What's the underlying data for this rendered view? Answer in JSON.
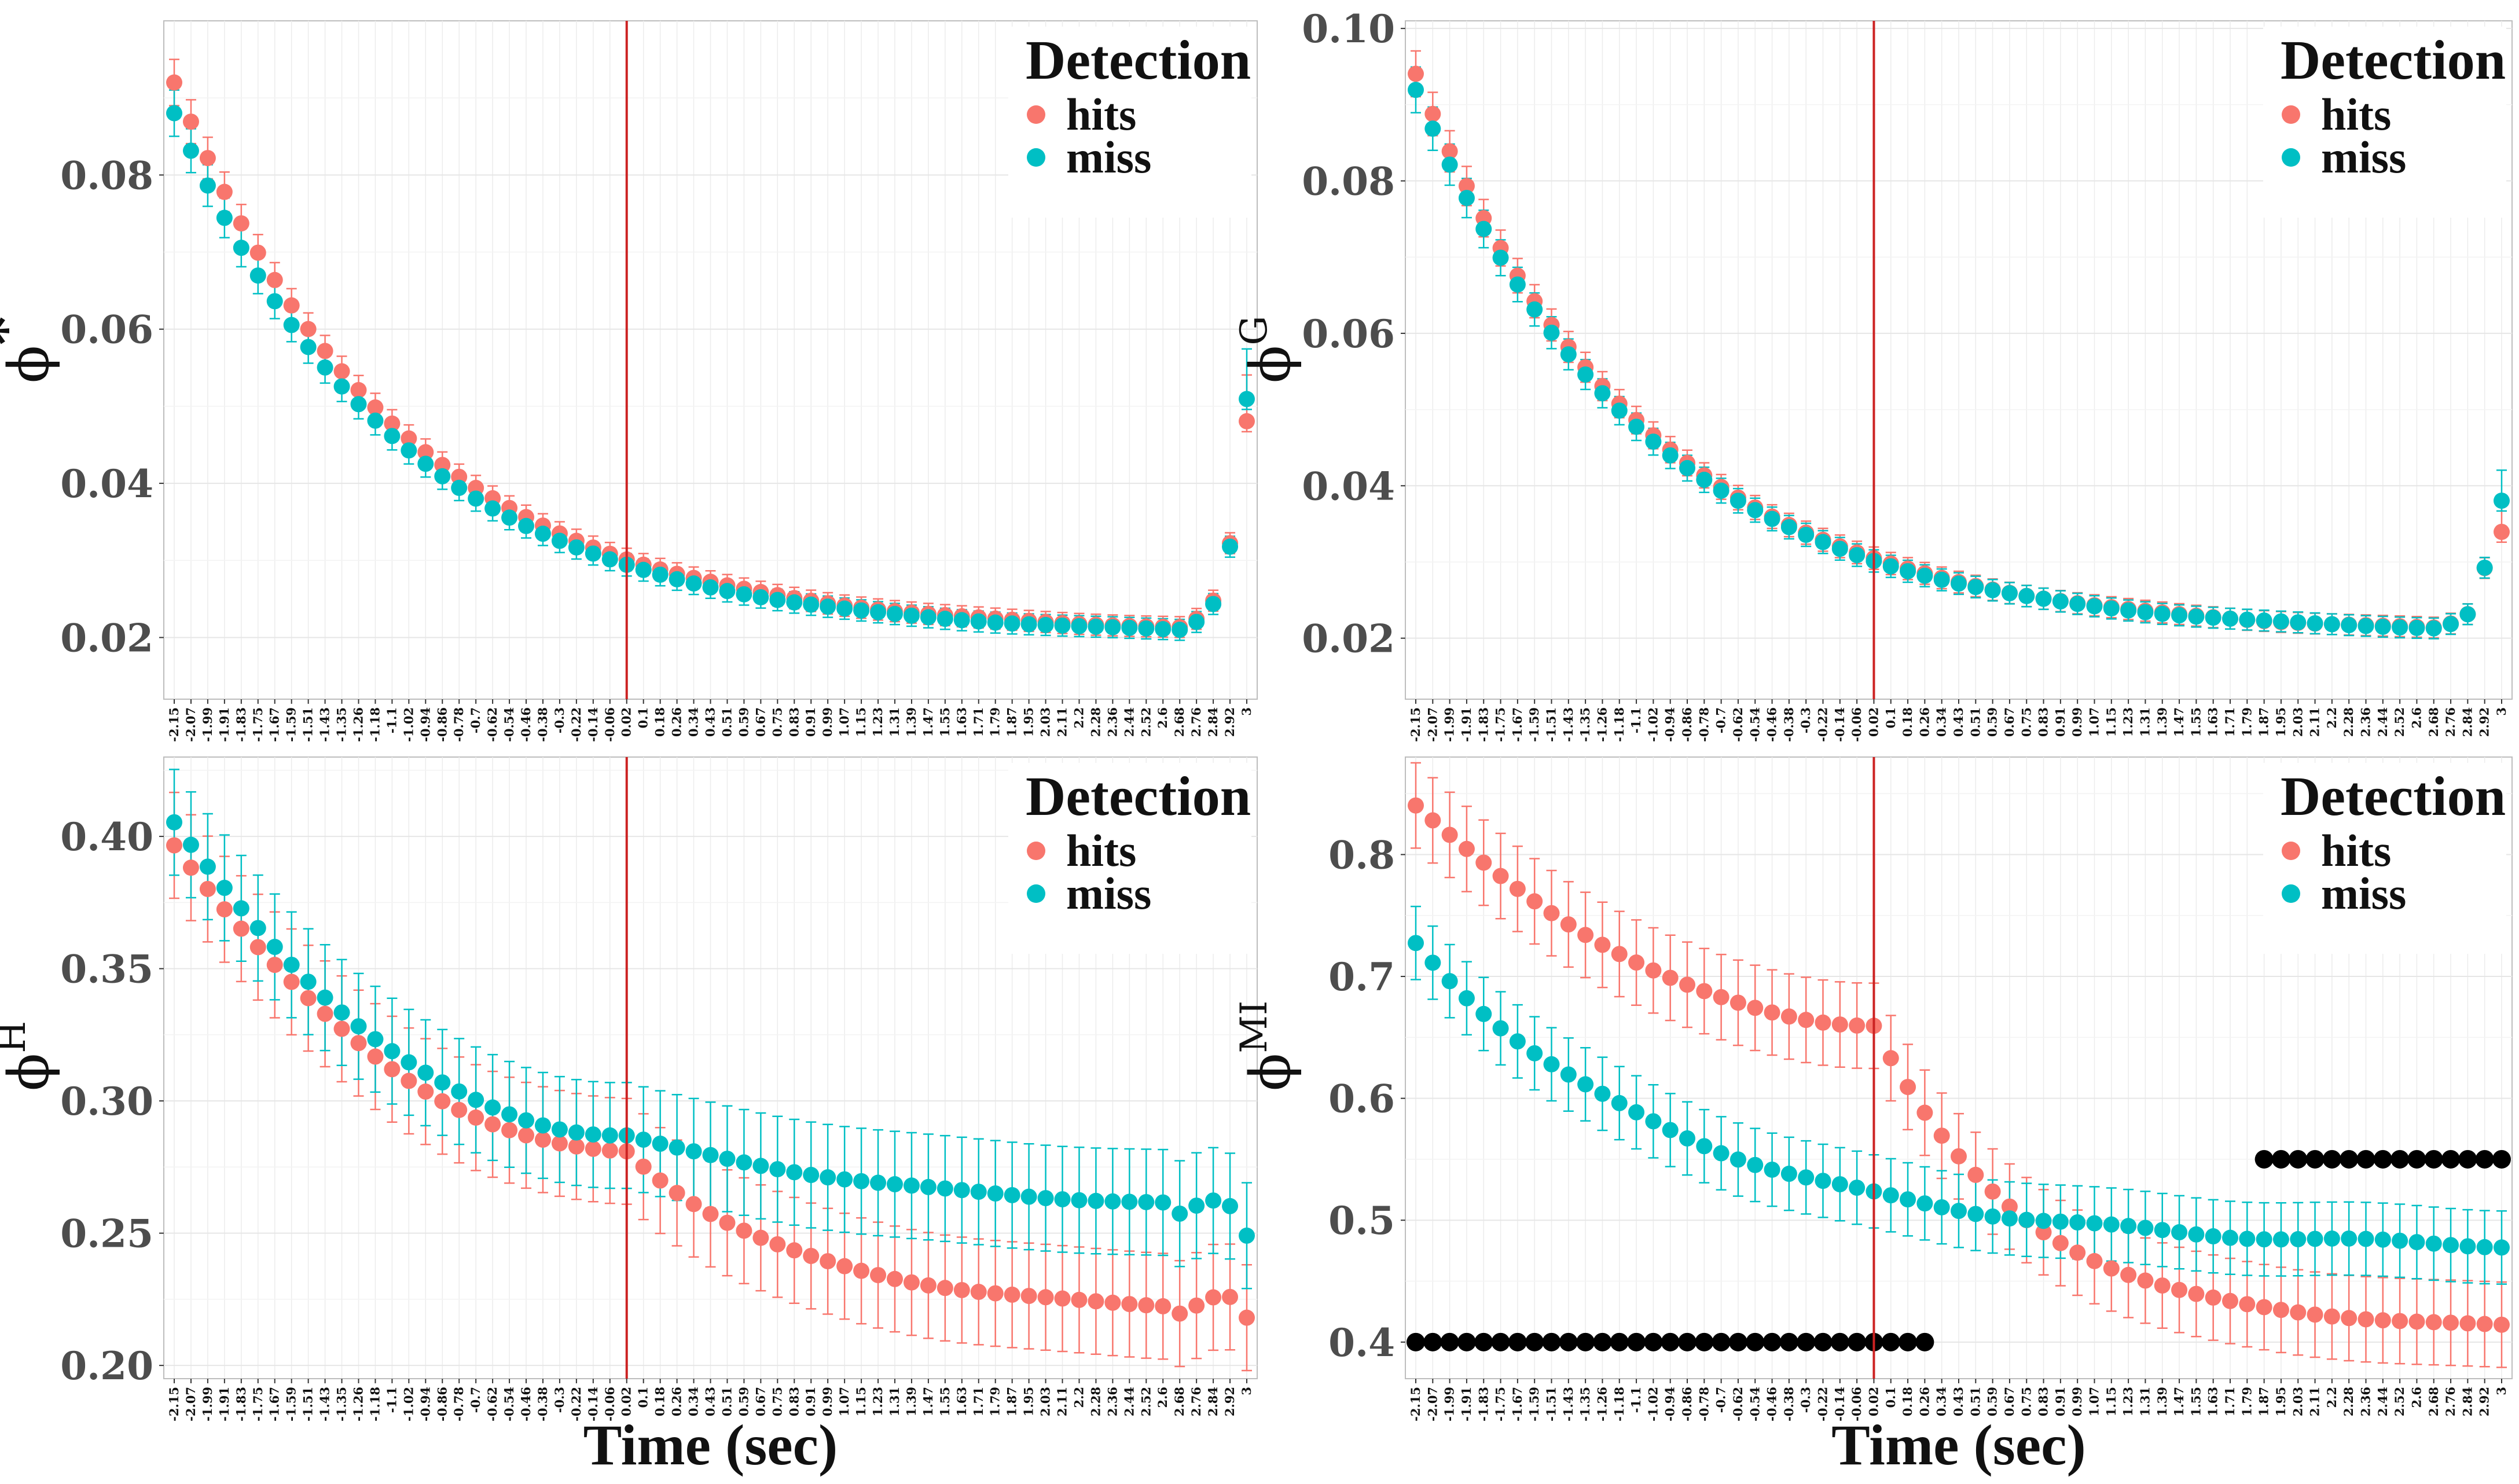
{
  "figure": {
    "xlabel": "Time (sec)",
    "legend_title": "Detection",
    "colors": {
      "hits": "#F8766D",
      "miss": "#00BFC4",
      "vline": "#CC2222",
      "marker": "#000000"
    }
  },
  "chart_data": [
    {
      "type": "scatter",
      "panel": "top-left",
      "ylabel": "ϕ",
      "ylabel_sup": "*",
      "xlabel": "",
      "legend": {
        "title": "Detection",
        "entries": [
          "hits",
          "miss"
        ],
        "placement": "top-right"
      },
      "ylim": [
        0.012,
        0.1
      ],
      "yticks": [
        0.02,
        0.04,
        0.06,
        0.08
      ],
      "ytick_labels": [
        "0.02",
        "0.04",
        "0.06",
        "0.08"
      ],
      "vline_x": 0.02,
      "series": [
        {
          "name": "hits",
          "start": 0.092,
          "knee": 0.031,
          "min": 0.0205,
          "end": 0.048,
          "err_lo": 0.003,
          "err_hi": 0.006
        },
        {
          "name": "miss",
          "start": 0.088,
          "knee": 0.03,
          "min": 0.0202,
          "end": 0.051,
          "err_lo": 0.003,
          "err_hi": 0.0065
        }
      ]
    },
    {
      "type": "scatter",
      "panel": "top-right",
      "ylabel": "ϕ",
      "ylabel_sup": "G",
      "xlabel": "",
      "legend": {
        "title": "Detection",
        "entries": [
          "hits",
          "miss"
        ],
        "placement": "top-right"
      },
      "ylim": [
        0.012,
        0.101
      ],
      "yticks": [
        0.02,
        0.04,
        0.06,
        0.08,
        0.1
      ],
      "ytick_labels": [
        "0.02",
        "0.04",
        "0.06",
        "0.08",
        "0.10"
      ],
      "vline_x": 0.02,
      "series": [
        {
          "name": "hits",
          "start": 0.094,
          "knee": 0.031,
          "min": 0.0205,
          "end": 0.034,
          "err_lo": 0.003,
          "err_hi": 0.004
        },
        {
          "name": "miss",
          "start": 0.092,
          "knee": 0.031,
          "min": 0.0205,
          "end": 0.038,
          "err_lo": 0.003,
          "err_hi": 0.004
        }
      ]
    },
    {
      "type": "scatter",
      "panel": "bottom-left",
      "ylabel": "ϕ",
      "ylabel_sup": "H",
      "xlabel": "Time (sec)",
      "legend": {
        "title": "Detection",
        "entries": [
          "hits",
          "miss"
        ],
        "placement": "top-right"
      },
      "ylim": [
        0.195,
        0.43
      ],
      "yticks": [
        0.2,
        0.25,
        0.3,
        0.35,
        0.4
      ],
      "ytick_labels": [
        "0.20",
        "0.25",
        "0.30",
        "0.35",
        "0.40"
      ],
      "vline_x": 0.02,
      "series": [
        {
          "name": "hits",
          "start": 0.397,
          "knee": 0.281,
          "min": 0.22,
          "end": 0.218,
          "err_lo": 0.02,
          "err_hi": 0.02
        },
        {
          "name": "miss",
          "start": 0.405,
          "knee": 0.287,
          "min": 0.257,
          "end": 0.249,
          "err_lo": 0.02,
          "err_hi": 0.02
        }
      ]
    },
    {
      "type": "scatter",
      "panel": "bottom-right",
      "ylabel": "ϕ",
      "ylabel_sup": "MI",
      "xlabel": "Time (sec)",
      "legend": {
        "title": "Detection",
        "entries": [
          "hits",
          "miss"
        ],
        "placement": "top-right"
      },
      "ylim": [
        0.37,
        0.88
      ],
      "yticks": [
        0.4,
        0.5,
        0.6,
        0.7,
        0.8
      ],
      "ytick_labels": [
        "0.4",
        "0.5",
        "0.6",
        "0.7",
        "0.8"
      ],
      "vline_x": 0.02,
      "series": [
        {
          "name": "hits",
          "start": 0.84,
          "knee": 0.66,
          "min": 0.41,
          "end": 0.41,
          "err_lo": 0.035,
          "err_hi": 0.035,
          "drop_to": 0.5
        },
        {
          "name": "miss",
          "start": 0.727,
          "knee": 0.54,
          "min": 0.475,
          "end": 0.475,
          "err_lo": 0.03,
          "err_hi": 0.03
        }
      ],
      "significance_markers": [
        {
          "y": 0.4,
          "x_from": -2.15,
          "x_to": 0.26
        },
        {
          "y": 0.55,
          "x_from": 1.87,
          "x_to": 3
        }
      ]
    }
  ],
  "x_ticks": [
    "-2.15",
    "-2.07",
    "-1.99",
    "-1.91",
    "-1.83",
    "-1.75",
    "-1.67",
    "-1.59",
    "-1.51",
    "-1.43",
    "-1.35",
    "-1.26",
    "-1.18",
    "-1.1",
    "-1.02",
    "-0.94",
    "-0.86",
    "-0.78",
    "-0.7",
    "-0.62",
    "-0.54",
    "-0.46",
    "-0.38",
    "-0.3",
    "-0.22",
    "-0.14",
    "-0.06",
    "0.02",
    "0.1",
    "0.18",
    "0.26",
    "0.34",
    "0.43",
    "0.51",
    "0.59",
    "0.67",
    "0.75",
    "0.83",
    "0.91",
    "0.99",
    "1.07",
    "1.15",
    "1.23",
    "1.31",
    "1.39",
    "1.47",
    "1.55",
    "1.63",
    "1.71",
    "1.79",
    "1.87",
    "1.95",
    "2.03",
    "2.11",
    "2.2",
    "2.28",
    "2.36",
    "2.44",
    "2.52",
    "2.6",
    "2.68",
    "2.76",
    "2.84",
    "2.92",
    "3"
  ]
}
